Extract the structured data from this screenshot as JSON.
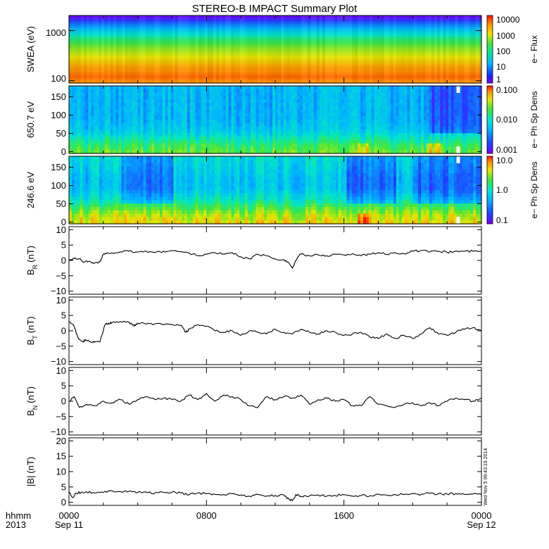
{
  "title": "STEREO-B IMPACT Summary Plot",
  "timestamp": "Wed Nov 5 06:43:19 2014",
  "time_axis": {
    "row1_label": "hhmm",
    "row2_label": "2013",
    "ticks": [
      {
        "hours": 0,
        "hhmm": "0000",
        "date": "Sep 11"
      },
      {
        "hours": 8,
        "hhmm": "0800",
        "date": ""
      },
      {
        "hours": 16,
        "hhmm": "1600",
        "date": ""
      },
      {
        "hours": 24,
        "hhmm": "0000",
        "date": "Sep 12"
      }
    ]
  },
  "colors": {
    "frame": "#000000",
    "line": "#000000",
    "fill_gap": "#ffffff"
  },
  "colorbars": [
    {
      "panel": "swea",
      "title": "e− Flux",
      "tick_labels": [
        "1",
        "10",
        "100",
        "1000",
        "10000"
      ]
    },
    {
      "panel": "pad650",
      "title": "e− Ph Sp Dens",
      "tick_labels": [
        "0.001",
        "0.010",
        "0.100"
      ]
    },
    {
      "panel": "pad246",
      "title": "e− Ph Sp Dens",
      "tick_labels": [
        "0.1",
        "1.0",
        "10.0"
      ]
    }
  ],
  "chart_data": [
    {
      "type": "heatmap",
      "id": "swea",
      "ylabel": "SWEA (eV)",
      "yscale": "log",
      "yticks": [
        "100",
        "1000"
      ],
      "ytick_values": [
        100,
        1000
      ],
      "ylim": [
        90,
        2000
      ],
      "zscale": "log",
      "zlim": [
        1,
        10000
      ],
      "energy_bands": [
        {
          "energy_eV": 1800,
          "flux": 1.5
        },
        {
          "energy_eV": 1400,
          "flux": 8
        },
        {
          "energy_eV": 1000,
          "flux": 40
        },
        {
          "energy_eV": 700,
          "flux": 200
        },
        {
          "energy_eV": 450,
          "flux": 700
        },
        {
          "energy_eV": 280,
          "flux": 1800
        },
        {
          "energy_eV": 180,
          "flux": 4000
        },
        {
          "energy_eV": 120,
          "flux": 6000
        },
        {
          "energy_eV": 95,
          "flux": 4500
        }
      ]
    },
    {
      "type": "heatmap",
      "id": "pad650",
      "ylabel": "650.7 eV",
      "yticks": [
        "0",
        "50",
        "100",
        "150"
      ],
      "ytick_values": [
        0,
        50,
        100,
        150
      ],
      "ylim": [
        -5,
        180
      ],
      "zscale": "log",
      "zlim": [
        0.001,
        0.1
      ],
      "pitch_angle_profile": [
        {
          "angle": 0,
          "value": 0.02
        },
        {
          "angle": 20,
          "value": 0.015
        },
        {
          "angle": 40,
          "value": 0.009
        },
        {
          "angle": 60,
          "value": 0.006
        },
        {
          "angle": 90,
          "value": 0.005
        },
        {
          "angle": 120,
          "value": 0.005
        },
        {
          "angle": 150,
          "value": 0.005
        },
        {
          "angle": 175,
          "value": 0.005
        }
      ],
      "enhanced_intervals_hours": [
        [
          16.8,
          17.5
        ],
        [
          20.8,
          21.8
        ]
      ],
      "depleted_intervals_hours": [
        [
          20.9,
          24.0
        ]
      ],
      "gap_hours": 22.55
    },
    {
      "type": "heatmap",
      "id": "pad246",
      "ylabel": "246.6 eV",
      "yticks": [
        "0",
        "50",
        "100",
        "150"
      ],
      "ytick_values": [
        0,
        50,
        100,
        150
      ],
      "ylim": [
        -5,
        180
      ],
      "zscale": "log",
      "zlim": [
        0.1,
        10
      ],
      "pitch_angle_profile": [
        {
          "angle": 0,
          "value": 4.0
        },
        {
          "angle": 20,
          "value": 3.0
        },
        {
          "angle": 40,
          "value": 1.8
        },
        {
          "angle": 60,
          "value": 1.0
        },
        {
          "angle": 90,
          "value": 0.6
        },
        {
          "angle": 120,
          "value": 0.6
        },
        {
          "angle": 150,
          "value": 0.7
        },
        {
          "angle": 175,
          "value": 0.8
        }
      ],
      "enhanced_intervals_hours": [
        [
          16.8,
          17.5
        ]
      ],
      "depleted_intervals_hours": [
        [
          3.0,
          6.0
        ],
        [
          16.2,
          19.0
        ],
        [
          20.0,
          24.0
        ]
      ],
      "gap_hours": 22.55
    },
    {
      "type": "line",
      "id": "br",
      "ylabel": "B",
      "ylabel_sub": "R",
      "ylabel_unit": "(nT)",
      "yticks": [
        "10",
        "5",
        "0",
        "−5",
        "−10"
      ],
      "ytick_values": [
        10,
        5,
        0,
        -5,
        -10
      ],
      "ylim": [
        -11,
        11
      ],
      "x_hours": [
        0.0,
        0.3,
        0.6,
        0.9,
        1.2,
        1.5,
        1.8,
        2.0,
        2.2,
        2.5,
        3.0,
        3.5,
        4.0,
        4.5,
        5.0,
        5.5,
        6.0,
        6.5,
        7.0,
        7.5,
        8.0,
        8.5,
        9.0,
        9.5,
        10.0,
        10.5,
        11.0,
        11.5,
        12.0,
        12.5,
        12.8,
        13.0,
        13.3,
        13.5,
        14.0,
        14.5,
        15.0,
        15.5,
        16.0,
        16.5,
        17.0,
        17.5,
        18.0,
        18.5,
        19.0,
        19.5,
        20.0,
        20.5,
        21.0,
        21.5,
        22.0,
        22.5,
        23.0,
        23.5,
        24.0
      ],
      "values": [
        0.0,
        0.6,
        0.5,
        -0.5,
        -0.3,
        -0.8,
        -0.5,
        2.0,
        2.2,
        2.5,
        2.8,
        3.0,
        2.7,
        3.0,
        2.6,
        3.0,
        3.2,
        2.8,
        2.4,
        1.5,
        2.0,
        2.5,
        2.1,
        2.5,
        1.2,
        0.5,
        2.0,
        1.5,
        0.5,
        0.3,
        -0.8,
        -2.5,
        1.0,
        2.0,
        1.5,
        1.8,
        1.5,
        2.0,
        1.8,
        2.2,
        1.5,
        2.0,
        2.5,
        2.0,
        2.5,
        2.2,
        3.0,
        3.2,
        2.8,
        3.0,
        2.6,
        3.0,
        3.0,
        3.0,
        3.0
      ]
    },
    {
      "type": "line",
      "id": "bt",
      "ylabel": "B",
      "ylabel_sub": "T",
      "ylabel_unit": "(nT)",
      "yticks": [
        "10",
        "5",
        "0",
        "−5",
        "−10"
      ],
      "ytick_values": [
        10,
        5,
        0,
        -5,
        -10
      ],
      "ylim": [
        -11,
        11
      ],
      "x_hours": [
        0.0,
        0.3,
        0.5,
        0.8,
        1.0,
        1.3,
        1.5,
        1.8,
        2.1,
        2.3,
        2.5,
        3.0,
        3.5,
        3.8,
        4.0,
        4.5,
        5.0,
        5.5,
        6.0,
        6.5,
        6.8,
        7.0,
        7.5,
        8.0,
        8.5,
        9.0,
        9.5,
        10.0,
        10.5,
        11.0,
        11.5,
        12.0,
        12.5,
        13.0,
        13.5,
        14.0,
        14.5,
        15.0,
        15.5,
        16.0,
        16.5,
        17.0,
        17.5,
        18.0,
        18.5,
        19.0,
        19.5,
        20.0,
        20.5,
        21.0,
        21.5,
        22.0,
        22.5,
        23.0,
        23.5,
        24.0
      ],
      "values": [
        3.0,
        1.5,
        -2.0,
        -3.5,
        -3.0,
        -3.8,
        -3.5,
        -3.6,
        2.0,
        2.5,
        2.6,
        3.0,
        2.8,
        1.5,
        2.5,
        2.2,
        2.3,
        2.0,
        2.1,
        1.8,
        -0.5,
        0.5,
        2.0,
        1.5,
        0.0,
        -0.5,
        0.0,
        -1.5,
        0.0,
        -0.5,
        -1.0,
        0.5,
        -0.5,
        -1.0,
        0.5,
        -0.5,
        -1.0,
        0.0,
        -0.5,
        -1.5,
        -1.0,
        -0.5,
        -2.0,
        -2.5,
        -1.0,
        -2.5,
        -1.5,
        -2.5,
        -1.0,
        1.0,
        -1.0,
        -1.5,
        -0.5,
        0.5,
        1.0,
        0.0
      ]
    },
    {
      "type": "line",
      "id": "bn",
      "ylabel": "B",
      "ylabel_sub": "N",
      "ylabel_unit": "(nT)",
      "yticks": [
        "10",
        "5",
        "0",
        "−5",
        "−10"
      ],
      "ytick_values": [
        10,
        5,
        0,
        -5,
        -10
      ],
      "ylim": [
        -11,
        11
      ],
      "x_hours": [
        0.0,
        0.3,
        0.6,
        1.0,
        1.5,
        2.0,
        2.5,
        3.0,
        3.5,
        4.0,
        4.5,
        5.0,
        5.5,
        6.0,
        6.5,
        7.0,
        7.5,
        8.0,
        8.5,
        9.0,
        9.5,
        10.0,
        10.5,
        11.0,
        11.5,
        12.0,
        12.5,
        13.0,
        13.5,
        14.0,
        14.5,
        15.0,
        15.5,
        16.0,
        16.5,
        17.0,
        17.5,
        18.0,
        18.5,
        19.0,
        19.5,
        20.0,
        20.5,
        21.0,
        21.5,
        22.0,
        22.5,
        23.0,
        23.5,
        24.0
      ],
      "values": [
        0.0,
        1.5,
        -2.0,
        -1.0,
        -1.5,
        0.0,
        -0.5,
        0.5,
        -1.0,
        0.5,
        1.5,
        0.5,
        1.0,
        0.5,
        0.0,
        2.0,
        0.5,
        2.5,
        0.0,
        2.0,
        1.5,
        0.5,
        -1.5,
        -2.0,
        1.5,
        0.5,
        1.5,
        1.0,
        2.0,
        -1.0,
        0.5,
        1.0,
        0.0,
        0.5,
        -1.5,
        -1.5,
        1.5,
        -1.0,
        -1.5,
        -2.0,
        -1.0,
        -0.5,
        -1.5,
        -0.5,
        -1.5,
        0.0,
        1.0,
        0.5,
        0.0,
        1.0
      ]
    },
    {
      "type": "line",
      "id": "bmag",
      "ylabel": "|B|",
      "ylabel_unit": "(nT)",
      "yticks": [
        "20",
        "15",
        "10",
        "5",
        "0"
      ],
      "ytick_values": [
        20,
        15,
        10,
        5,
        0
      ],
      "ylim": [
        -1,
        21
      ],
      "x_hours": [
        0.0,
        0.2,
        0.4,
        0.7,
        1.0,
        1.5,
        2.0,
        2.5,
        3.0,
        3.5,
        4.0,
        4.5,
        5.0,
        5.5,
        6.0,
        6.5,
        7.0,
        7.5,
        8.0,
        8.5,
        9.0,
        9.5,
        10.0,
        10.5,
        11.0,
        11.5,
        12.0,
        12.5,
        12.8,
        13.0,
        13.2,
        13.5,
        14.0,
        14.5,
        15.0,
        15.5,
        16.0,
        16.5,
        17.0,
        17.5,
        18.0,
        18.5,
        19.0,
        19.5,
        20.0,
        20.5,
        21.0,
        21.5,
        22.0,
        22.5,
        23.0,
        23.5,
        24.0
      ],
      "values": [
        3.5,
        1.5,
        3.0,
        3.2,
        3.5,
        3.0,
        3.2,
        3.8,
        3.5,
        3.6,
        3.2,
        3.3,
        3.0,
        3.2,
        3.3,
        3.0,
        2.5,
        3.0,
        2.8,
        2.6,
        2.5,
        2.8,
        2.4,
        2.0,
        2.5,
        2.0,
        2.2,
        2.4,
        1.0,
        0.5,
        2.5,
        2.0,
        2.1,
        2.4,
        2.0,
        2.2,
        2.5,
        2.0,
        2.2,
        2.1,
        2.6,
        2.3,
        2.5,
        2.5,
        2.8,
        2.6,
        2.9,
        2.8,
        2.7,
        2.8,
        2.6,
        2.7,
        2.5
      ]
    }
  ]
}
